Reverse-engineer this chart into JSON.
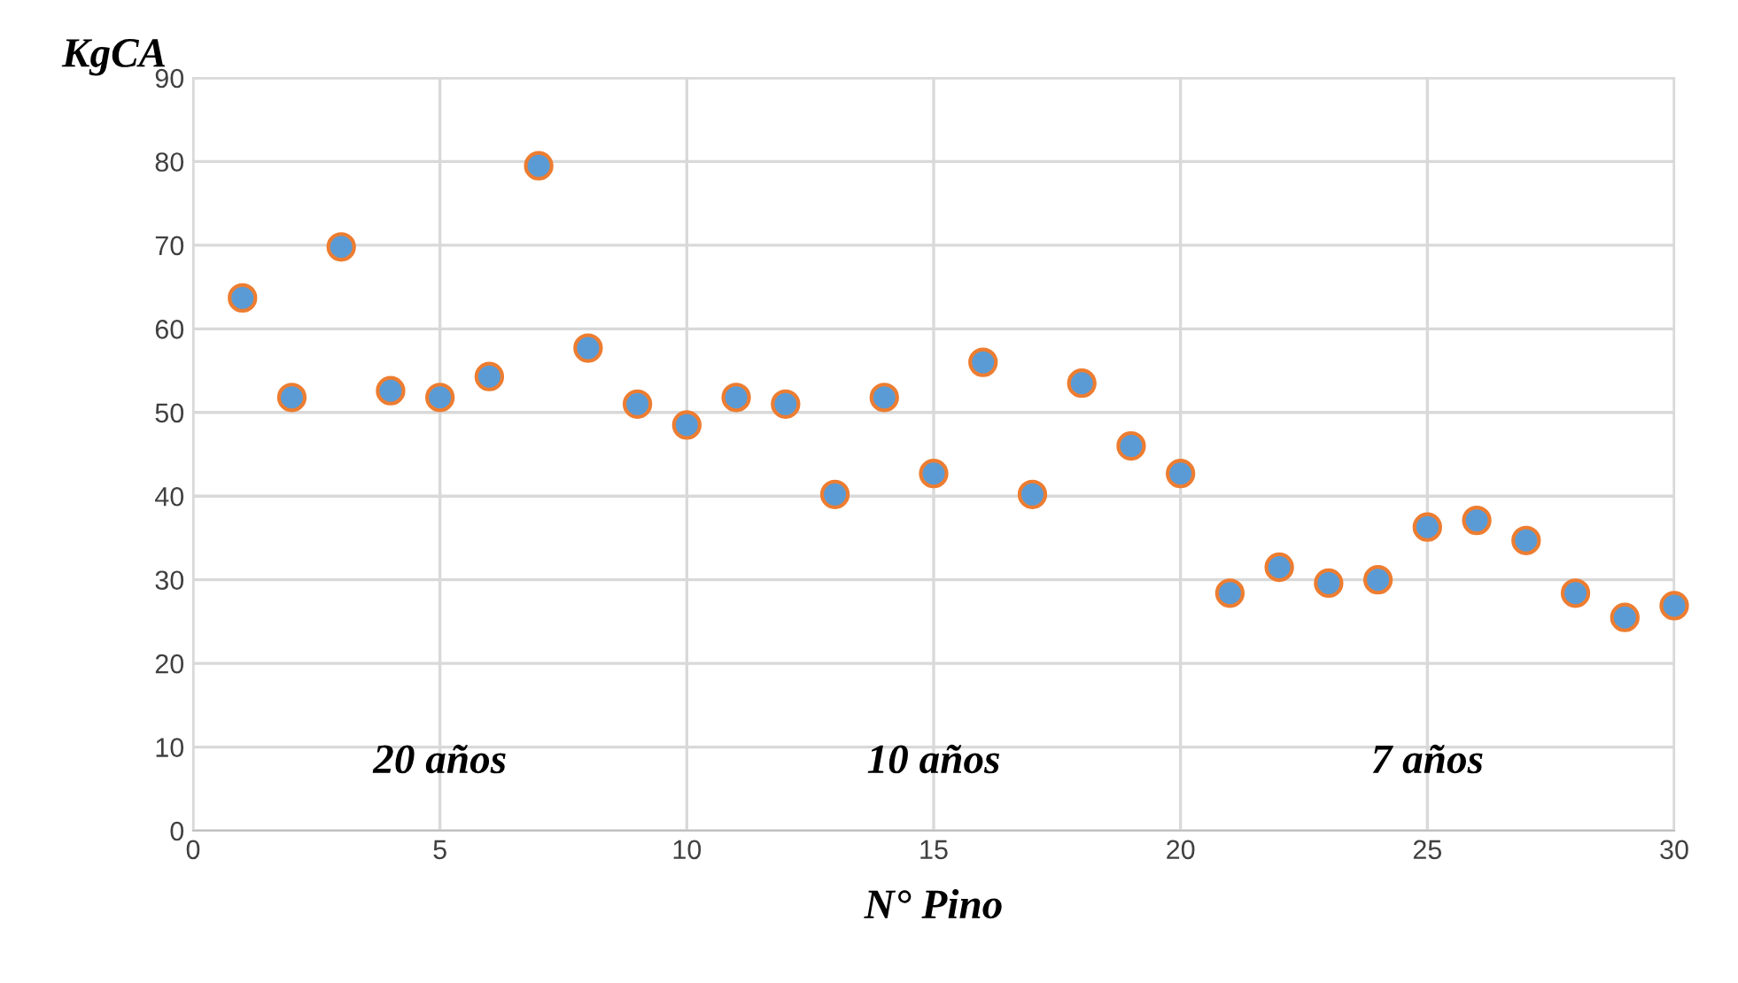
{
  "chart_data": {
    "type": "scatter",
    "xlabel": "N° Pino",
    "ylabel": "KgCA",
    "x": [
      1,
      2,
      3,
      4,
      5,
      6,
      7,
      8,
      9,
      10,
      11,
      12,
      13,
      14,
      15,
      16,
      17,
      18,
      19,
      20,
      21,
      22,
      23,
      24,
      25,
      26,
      27,
      28,
      29,
      30
    ],
    "values": [
      63.7,
      51.8,
      69.8,
      52.6,
      51.8,
      54.3,
      79.5,
      57.7,
      51.0,
      48.5,
      51.8,
      51.0,
      40.2,
      51.8,
      42.7,
      56.0,
      40.2,
      53.5,
      46.0,
      42.7,
      28.4,
      31.5,
      29.6,
      30.0,
      36.3,
      37.1,
      34.7,
      28.4,
      25.5,
      26.9
    ],
    "color": "#5b9bd5",
    "marker": "circle",
    "xlim": [
      0,
      30
    ],
    "xticks": [
      0,
      5,
      10,
      15,
      20,
      25,
      30
    ],
    "ylim": [
      0,
      90
    ],
    "yticks": [
      0,
      10,
      20,
      30,
      40,
      50,
      60,
      70,
      80,
      90
    ],
    "grid": true,
    "annotations": [
      "20 años",
      "10 años",
      "7 años"
    ]
  }
}
